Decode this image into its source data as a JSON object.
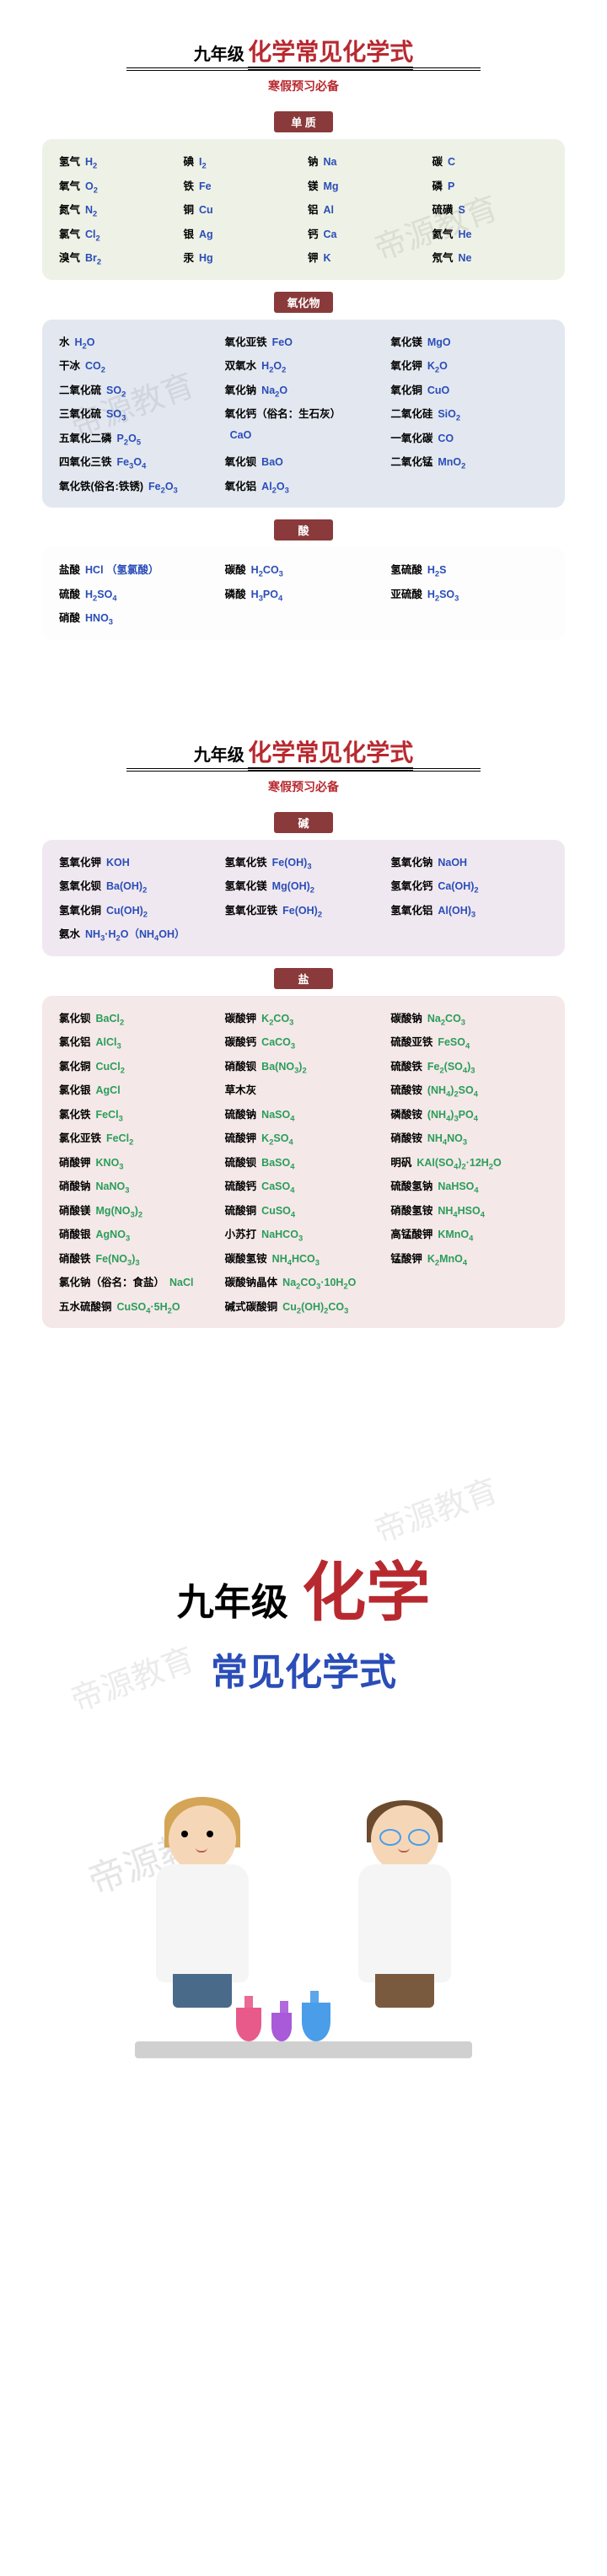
{
  "grade": "九年级",
  "title": "化学常见化学式",
  "subtitle": "寒假预习必备",
  "watermark": "帝源教育",
  "sections": {
    "danzhi": {
      "tag": "单 质",
      "bg": "green",
      "cols": 4,
      "items": [
        {
          "nm": "氢气",
          "fm": "H₂"
        },
        {
          "nm": "碘",
          "fm": "I₂"
        },
        {
          "nm": "钠",
          "fm": "Na"
        },
        {
          "nm": "碳",
          "fm": "C"
        },
        {
          "nm": "氧气",
          "fm": "O₂"
        },
        {
          "nm": "铁",
          "fm": "Fe"
        },
        {
          "nm": "镁",
          "fm": "Mg"
        },
        {
          "nm": "磷",
          "fm": "P"
        },
        {
          "nm": "氮气",
          "fm": "N₂"
        },
        {
          "nm": "铜",
          "fm": "Cu"
        },
        {
          "nm": "铝",
          "fm": "Al"
        },
        {
          "nm": "硫磺",
          "fm": "S"
        },
        {
          "nm": "氯气",
          "fm": "Cl₂"
        },
        {
          "nm": "银",
          "fm": "Ag"
        },
        {
          "nm": "钙",
          "fm": "Ca"
        },
        {
          "nm": "氦气",
          "fm": "He"
        },
        {
          "nm": "溴气",
          "fm": "Br₂"
        },
        {
          "nm": "汞",
          "fm": "Hg"
        },
        {
          "nm": "钾",
          "fm": "K"
        },
        {
          "nm": "氖气",
          "fm": "Ne"
        }
      ]
    },
    "yanghuawu": {
      "tag": "氧化物",
      "bg": "blue",
      "cols": 3,
      "items": [
        {
          "nm": "水",
          "fm": "H₂O"
        },
        {
          "nm": "氧化亚铁",
          "fm": "FeO"
        },
        {
          "nm": "氧化镁",
          "fm": "MgO"
        },
        {
          "nm": "干冰",
          "fm": "CO₂"
        },
        {
          "nm": "双氧水",
          "fm": "H₂O₂"
        },
        {
          "nm": "氧化钾",
          "fm": "K₂O"
        },
        {
          "nm": "二氧化硫",
          "fm": "SO₂"
        },
        {
          "nm": "氧化钠",
          "fm": "Na₂O"
        },
        {
          "nm": "氧化铜",
          "fm": "CuO"
        },
        {
          "nm": "三氧化硫",
          "fm": "SO₃"
        },
        {
          "nm": "氧化钙（俗名：生石灰）",
          "fm": ""
        },
        {
          "nm": "二氧化硅",
          "fm": "SiO₂"
        },
        {
          "nm": "五氧化二磷",
          "fm": "P₂O₅"
        },
        {
          "nm": "",
          "fm": "CaO"
        },
        {
          "nm": "一氧化碳",
          "fm": "CO"
        },
        {
          "nm": "四氧化三铁",
          "fm": "Fe₃O₄"
        },
        {
          "nm": "氧化钡",
          "fm": "BaO"
        },
        {
          "nm": "二氧化锰",
          "fm": "MnO₂"
        },
        {
          "nm": "氧化铁(俗名:铁锈)",
          "fm": "Fe₂O₃"
        },
        {
          "nm": "氧化铝",
          "fm": "Al₂O₃"
        },
        {
          "nm": "",
          "fm": ""
        }
      ]
    },
    "suan": {
      "tag": "酸",
      "bg": "white",
      "cols": 3,
      "items": [
        {
          "nm": "盐酸",
          "fm": "HCl （氢氯酸）"
        },
        {
          "nm": "碳酸",
          "fm": "H₂CO₃"
        },
        {
          "nm": "氢硫酸",
          "fm": "H₂S"
        },
        {
          "nm": "硫酸",
          "fm": "H₂SO₄"
        },
        {
          "nm": "磷酸",
          "fm": "H₃PO₄"
        },
        {
          "nm": "亚硫酸",
          "fm": "H₂SO₃"
        },
        {
          "nm": "硝酸",
          "fm": "HNO₃"
        },
        {
          "nm": "",
          "fm": ""
        },
        {
          "nm": "",
          "fm": ""
        }
      ]
    },
    "jian": {
      "tag": "碱",
      "bg": "purple",
      "cols": 3,
      "items": [
        {
          "nm": "氢氧化钾",
          "fm": "KOH"
        },
        {
          "nm": "氢氧化铁",
          "fm": "Fe(OH)₃"
        },
        {
          "nm": "氢氧化钠",
          "fm": "NaOH"
        },
        {
          "nm": "氢氧化钡",
          "fm": "Ba(OH)₂"
        },
        {
          "nm": "氢氧化镁",
          "fm": "Mg(OH)₂"
        },
        {
          "nm": "氢氧化钙",
          "fm": "Ca(OH)₂"
        },
        {
          "nm": "氢氧化铜",
          "fm": "Cu(OH)₂"
        },
        {
          "nm": "氢氧化亚铁",
          "fm": "Fe(OH)₂"
        },
        {
          "nm": "氢氧化铝",
          "fm": "Al(OH)₃"
        },
        {
          "nm": "氨水",
          "fm": "NH₃·H₂O（NH₄OH）"
        },
        {
          "nm": "",
          "fm": ""
        },
        {
          "nm": "",
          "fm": ""
        }
      ]
    },
    "yan": {
      "tag": "盐",
      "bg": "pink",
      "cols": 3,
      "fmClass": "fm-green",
      "items": [
        {
          "nm": "氯化钡",
          "fm": "BaCl₂"
        },
        {
          "nm": "碳酸钾",
          "fm": "K₂CO₃"
        },
        {
          "nm": "碳酸钠",
          "fm": "Na₂CO₃"
        },
        {
          "nm": "氯化铝",
          "fm": "AlCl₃"
        },
        {
          "nm": "碳酸钙",
          "fm": "CaCO₃"
        },
        {
          "nm": "硫酸亚铁",
          "fm": "FeSO₄"
        },
        {
          "nm": "氯化铜",
          "fm": "CuCl₂"
        },
        {
          "nm": "硝酸钡",
          "fm": "Ba(NO₃)₂"
        },
        {
          "nm": "硫酸铁",
          "fm": "Fe₂(SO₄)₃"
        },
        {
          "nm": "氯化银",
          "fm": "AgCl"
        },
        {
          "nm": "草木灰",
          "fm": ""
        },
        {
          "nm": "硫酸铵",
          "fm": "(NH₄)₂SO₄"
        },
        {
          "nm": "氯化铁",
          "fm": "FeCl₃"
        },
        {
          "nm": "硫酸钠",
          "fm": "NaSO₄"
        },
        {
          "nm": "磷酸铵",
          "fm": "(NH₄)₃PO₄"
        },
        {
          "nm": "氯化亚铁",
          "fm": "FeCl₂"
        },
        {
          "nm": "硫酸钾",
          "fm": "K₂SO₄"
        },
        {
          "nm": "硝酸铵",
          "fm": "NH₄NO₃"
        },
        {
          "nm": "硝酸钾",
          "fm": "KNO₃"
        },
        {
          "nm": "硫酸钡",
          "fm": "BaSO₄"
        },
        {
          "nm": "明矾",
          "fm": "KAl(SO₄)₂·12H₂O"
        },
        {
          "nm": "硝酸钠",
          "fm": "NaNO₃"
        },
        {
          "nm": "硫酸钙",
          "fm": "CaSO₄"
        },
        {
          "nm": "硫酸氢钠",
          "fm": "NaHSO₄"
        },
        {
          "nm": "硝酸镁",
          "fm": "Mg(NO₃)₂"
        },
        {
          "nm": "硫酸铜",
          "fm": "CuSO₄"
        },
        {
          "nm": "硝酸氢铵",
          "fm": "NH₄HSO₄"
        },
        {
          "nm": "硝酸银",
          "fm": "AgNO₃"
        },
        {
          "nm": "小苏打",
          "fm": "NaHCO₃"
        },
        {
          "nm": "高锰酸钾",
          "fm": "KMnO₄"
        },
        {
          "nm": "硝酸铁",
          "fm": "Fe(NO₃)₃"
        },
        {
          "nm": "碳酸氢铵",
          "fm": "NH₄HCO₃"
        },
        {
          "nm": "锰酸钾",
          "fm": "K₂MnO₄"
        },
        {
          "nm": "氯化钠（俗名：食盐）",
          "fm": "NaCl"
        },
        {
          "nm": "碳酸钠晶体",
          "fm": "Na₂CO₃·10H₂O"
        },
        {
          "nm": "",
          "fm": ""
        },
        {
          "nm": "五水硫酸铜",
          "fm": "CuSO₄·5H₂O"
        },
        {
          "nm": "碱式碳酸铜",
          "fm": "Cu₂(OH)₂CO₃"
        },
        {
          "nm": "",
          "fm": ""
        }
      ]
    }
  },
  "cover": {
    "grade": "九年级",
    "chem": "化学",
    "sub": "常见化学式"
  },
  "colors": {
    "red": "#b8292f",
    "blue": "#2a4db8",
    "green": "#2a9d5a",
    "tagBg": "#8a3a3a"
  }
}
